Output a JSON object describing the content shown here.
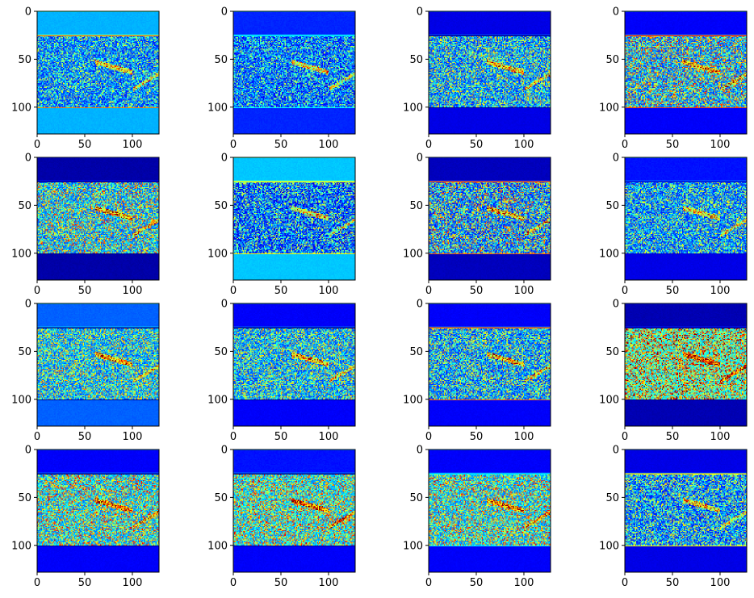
{
  "chart_data": {
    "type": "heatmap",
    "colormap": "jet",
    "layout": "4x4 grid of feature-map heatmaps",
    "image_size": [
      128,
      128
    ],
    "x_ticks": [
      0,
      50,
      100
    ],
    "y_ticks": [
      0,
      50,
      100
    ],
    "xlim": [
      0,
      128
    ],
    "ylim": [
      128,
      0
    ],
    "grid": false,
    "colorbar": false,
    "panels": [
      {
        "row": 0,
        "col": 0,
        "band_level": 0.3,
        "band_top_level": 0.3,
        "band_bot_level": 0.3,
        "content_level": 0.15,
        "content_var": 0.22,
        "line_color": "#ff8000"
      },
      {
        "row": 0,
        "col": 1,
        "band_level": 0.16,
        "band_top_level": 0.16,
        "band_bot_level": 0.16,
        "content_level": 0.12,
        "content_var": 0.22,
        "line_color": "#00ffff"
      },
      {
        "row": 0,
        "col": 2,
        "band_level": 0.1,
        "band_top_level": 0.1,
        "band_bot_level": 0.1,
        "content_level": 0.16,
        "content_var": 0.26,
        "line_color": "#00008f"
      },
      {
        "row": 0,
        "col": 3,
        "band_level": 0.12,
        "band_top_level": 0.12,
        "band_bot_level": 0.12,
        "content_level": 0.18,
        "content_var": 0.32,
        "line_color": "#ff4000"
      },
      {
        "row": 1,
        "col": 0,
        "band_level": 0.04,
        "band_top_level": 0.04,
        "band_bot_level": 0.04,
        "content_level": 0.2,
        "content_var": 0.3,
        "line_color": "#00008f"
      },
      {
        "row": 1,
        "col": 1,
        "band_level": 0.32,
        "band_top_level": 0.32,
        "band_bot_level": 0.32,
        "content_level": 0.1,
        "content_var": 0.25,
        "line_color": "#ffff00"
      },
      {
        "row": 1,
        "col": 2,
        "band_level": 0.06,
        "band_top_level": 0.06,
        "band_bot_level": 0.06,
        "content_level": 0.14,
        "content_var": 0.32,
        "line_color": "#ff6000"
      },
      {
        "row": 1,
        "col": 3,
        "band_level": 0.14,
        "band_top_level": 0.14,
        "band_bot_level": 0.1,
        "content_level": 0.15,
        "content_var": 0.24,
        "line_color": "#0000cf"
      },
      {
        "row": 2,
        "col": 0,
        "band_level": 0.22,
        "band_top_level": 0.22,
        "band_bot_level": 0.22,
        "content_level": 0.2,
        "content_var": 0.26,
        "line_color": "#00008f"
      },
      {
        "row": 2,
        "col": 1,
        "band_level": 0.12,
        "band_top_level": 0.12,
        "band_bot_level": 0.12,
        "content_level": 0.18,
        "content_var": 0.26,
        "line_color": "#00008f"
      },
      {
        "row": 2,
        "col": 2,
        "band_level": 0.12,
        "band_top_level": 0.12,
        "band_bot_level": 0.12,
        "content_level": 0.16,
        "content_var": 0.26,
        "line_color": "#ff6000"
      },
      {
        "row": 2,
        "col": 3,
        "band_level": 0.05,
        "band_top_level": 0.05,
        "band_bot_level": 0.05,
        "content_level": 0.32,
        "content_var": 0.34,
        "line_color": "#00008f"
      },
      {
        "row": 3,
        "col": 0,
        "band_level": 0.12,
        "band_top_level": 0.12,
        "band_bot_level": 0.12,
        "content_level": 0.24,
        "content_var": 0.3,
        "line_color": "#00008f"
      },
      {
        "row": 3,
        "col": 1,
        "band_level": 0.12,
        "band_top_level": 0.14,
        "band_bot_level": 0.12,
        "content_level": 0.26,
        "content_var": 0.3,
        "line_color": "#00008f"
      },
      {
        "row": 3,
        "col": 2,
        "band_level": 0.12,
        "band_top_level": 0.12,
        "band_bot_level": 0.12,
        "content_level": 0.24,
        "content_var": 0.3,
        "line_color": "#00ffff"
      },
      {
        "row": 3,
        "col": 3,
        "band_level": 0.1,
        "band_top_level": 0.1,
        "band_bot_level": 0.1,
        "content_level": 0.14,
        "content_var": 0.26,
        "line_color": "#ffff00"
      }
    ]
  }
}
